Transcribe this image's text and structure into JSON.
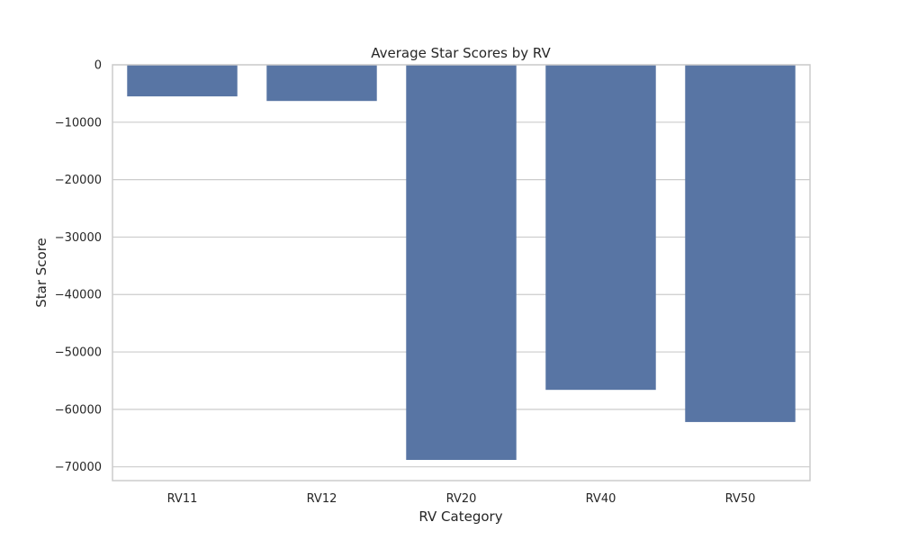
{
  "chart_data": {
    "type": "bar",
    "title": "Average Star Scores by RV",
    "xlabel": "RV Category",
    "ylabel": "Star Score",
    "categories": [
      "RV11",
      "RV12",
      "RV20",
      "RV40",
      "RV50"
    ],
    "values": [
      -5500,
      -6300,
      -68800,
      -56600,
      -62200
    ],
    "ylim": [
      -72400,
      0
    ],
    "yticks": [
      0,
      -10000,
      -20000,
      -30000,
      -40000,
      -50000,
      -60000,
      -70000
    ],
    "ytick_labels": [
      "0",
      "−10000",
      "−20000",
      "−30000",
      "−40000",
      "−50000",
      "−60000",
      "−70000"
    ],
    "grid": "horizontal",
    "bar_color": "#5875a4"
  }
}
